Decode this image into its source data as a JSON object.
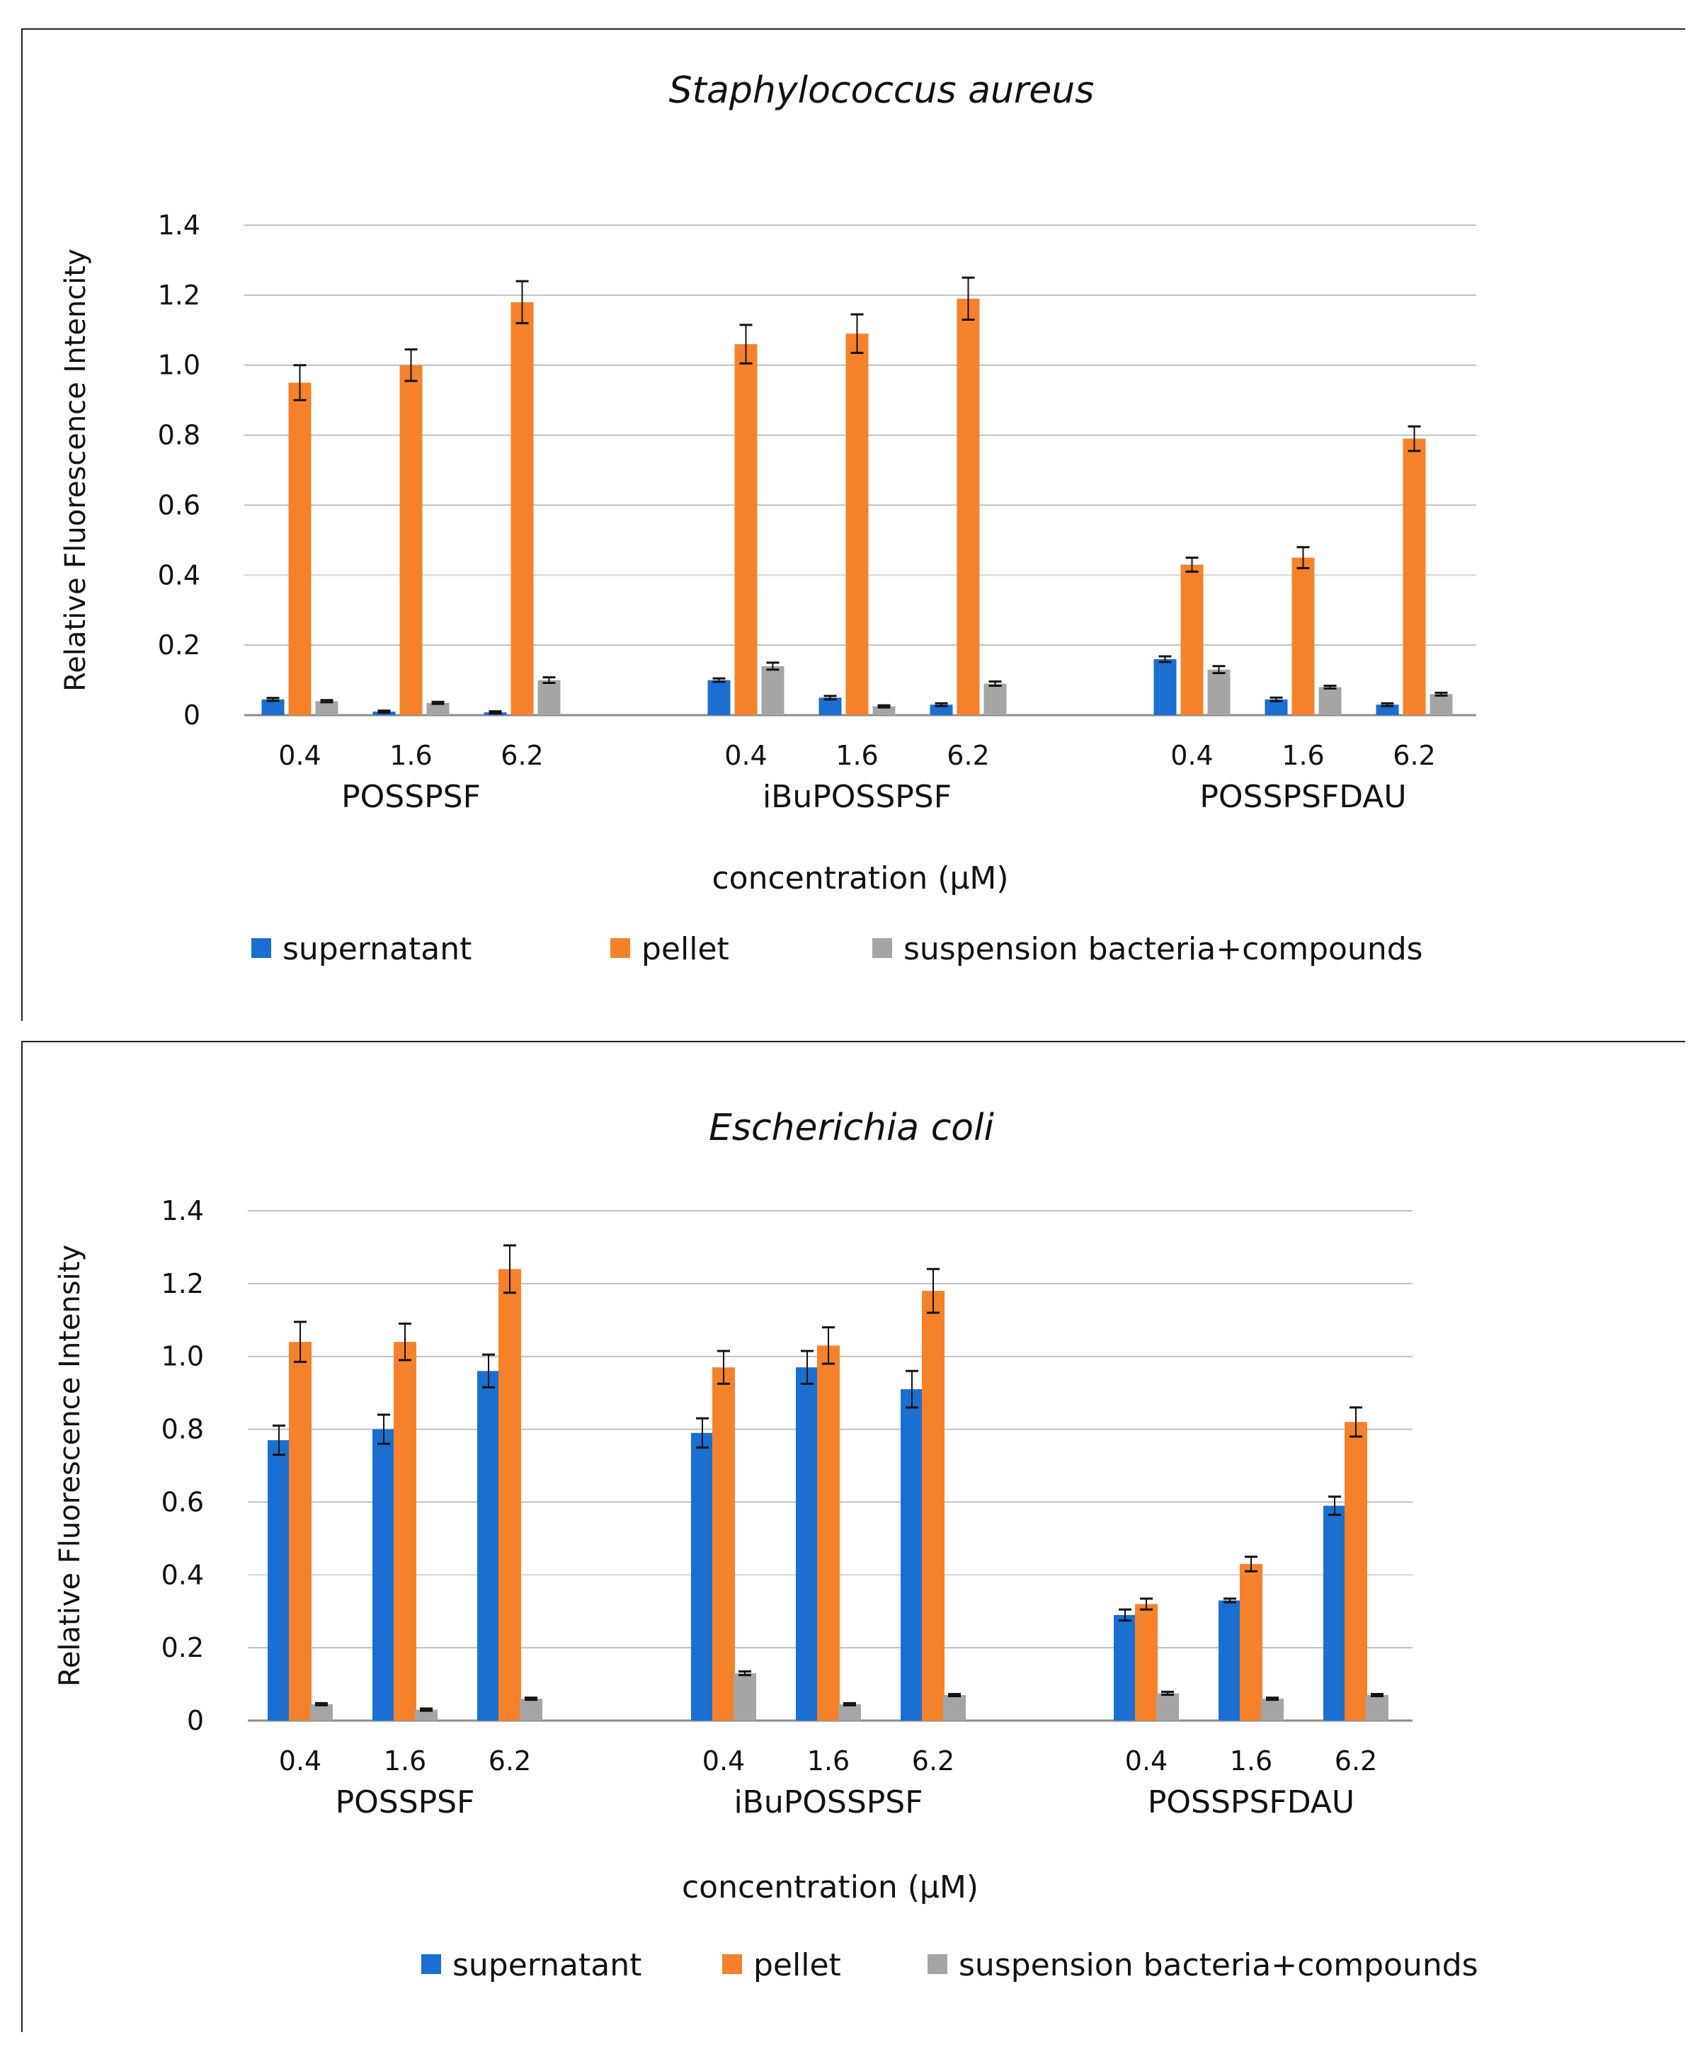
{
  "chart_data": [
    {
      "type": "bar",
      "title": "Staphylococcus aureus",
      "xlabel": "concentration (μM)",
      "ylabel": "Relative Fluorescence Intencity",
      "ylim": [
        0,
        1.4
      ],
      "yticks": [
        "0",
        "0.2",
        "0.4",
        "0.6",
        "0.8",
        "1.0",
        "1.2",
        "1.4"
      ],
      "groups": [
        "POSSPSF",
        "iBuPOSSPSF",
        "POSSPSFDAU"
      ],
      "categories": [
        "0.4",
        "1.6",
        "6.2"
      ],
      "grid": true,
      "legend_position": "bottom",
      "series": [
        {
          "name": "supernatant",
          "color": "#1a6fd0",
          "values": [
            [
              0.045,
              0.01,
              0.008
            ],
            [
              0.1,
              0.05,
              0.03
            ],
            [
              0.16,
              0.045,
              0.03
            ]
          ],
          "errors": [
            [
              0.004,
              0.003,
              0.003
            ],
            [
              0.005,
              0.005,
              0.004
            ],
            [
              0.008,
              0.005,
              0.004
            ]
          ]
        },
        {
          "name": "pellet",
          "color": "#f5822a",
          "values": [
            [
              0.95,
              1.0,
              1.18
            ],
            [
              1.06,
              1.09,
              1.19
            ],
            [
              0.43,
              0.45,
              0.79
            ]
          ],
          "errors": [
            [
              0.05,
              0.045,
              0.06
            ],
            [
              0.055,
              0.055,
              0.06
            ],
            [
              0.02,
              0.03,
              0.035
            ]
          ]
        },
        {
          "name": "suspension bacteria+compounds",
          "color": "#a5a5a5",
          "values": [
            [
              0.04,
              0.035,
              0.1
            ],
            [
              0.14,
              0.025,
              0.09
            ],
            [
              0.13,
              0.08,
              0.06
            ]
          ],
          "errors": [
            [
              0.003,
              0.003,
              0.008
            ],
            [
              0.01,
              0.003,
              0.006
            ],
            [
              0.01,
              0.004,
              0.004
            ]
          ]
        }
      ]
    },
    {
      "type": "bar",
      "title": "Escherichia coli",
      "xlabel": "concentration (μM)",
      "ylabel": "Relative Fluorescence Intensity",
      "ylim": [
        0,
        1.4
      ],
      "yticks": [
        "0",
        "0.2",
        "0.4",
        "0.6",
        "0.8",
        "1.0",
        "1.2",
        "1.4"
      ],
      "groups": [
        "POSSPSF",
        "iBuPOSSPSF",
        "POSSPSFDAU"
      ],
      "categories": [
        "0.4",
        "1.6",
        "6.2"
      ],
      "grid": true,
      "legend_position": "bottom",
      "series": [
        {
          "name": "supernatant",
          "color": "#1a6fd0",
          "values": [
            [
              0.77,
              0.8,
              0.96
            ],
            [
              0.79,
              0.97,
              0.91
            ],
            [
              0.29,
              0.33,
              0.59
            ]
          ],
          "errors": [
            [
              0.04,
              0.04,
              0.045
            ],
            [
              0.04,
              0.045,
              0.05
            ],
            [
              0.015,
              0.005,
              0.025
            ]
          ]
        },
        {
          "name": "pellet",
          "color": "#f5822a",
          "values": [
            [
              1.04,
              1.04,
              1.24
            ],
            [
              0.97,
              1.03,
              1.18
            ],
            [
              0.32,
              0.43,
              0.82
            ]
          ],
          "errors": [
            [
              0.055,
              0.05,
              0.065
            ],
            [
              0.045,
              0.05,
              0.06
            ],
            [
              0.015,
              0.02,
              0.04
            ]
          ]
        },
        {
          "name": "suspension bacteria+compounds",
          "color": "#a5a5a5",
          "values": [
            [
              0.045,
              0.03,
              0.06
            ],
            [
              0.13,
              0.045,
              0.07
            ],
            [
              0.075,
              0.06,
              0.07
            ]
          ],
          "errors": [
            [
              0.003,
              0.003,
              0.003
            ],
            [
              0.005,
              0.003,
              0.003
            ],
            [
              0.004,
              0.003,
              0.003
            ]
          ]
        }
      ]
    }
  ]
}
